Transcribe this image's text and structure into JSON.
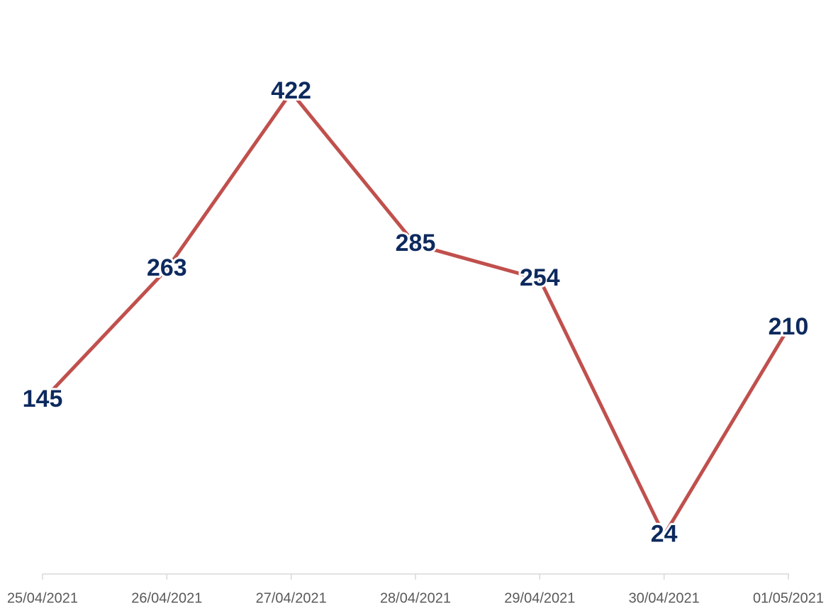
{
  "chart_data": {
    "type": "line",
    "categories": [
      "25/04/2021",
      "26/04/2021",
      "27/04/2021",
      "28/04/2021",
      "29/04/2021",
      "30/04/2021",
      "01/05/2021"
    ],
    "values": [
      145,
      263,
      422,
      285,
      254,
      24,
      210
    ],
    "color": "#c0504d",
    "label_color": "#0d2a5e",
    "ylim": [
      0,
      450
    ]
  }
}
